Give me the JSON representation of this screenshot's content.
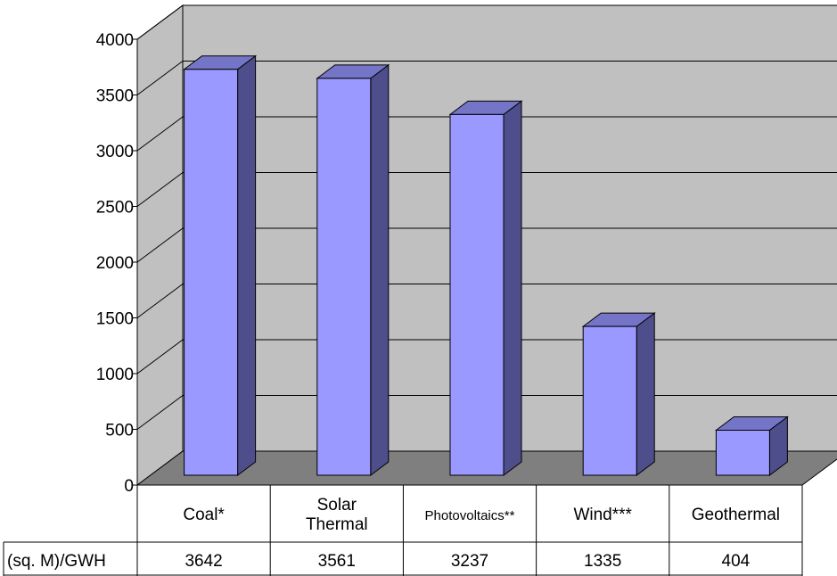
{
  "chart_data": {
    "type": "bar",
    "categories": [
      "Coal*",
      "Solar Thermal",
      "Photovoltaics**",
      "Wind***",
      "Geothermal"
    ],
    "category_lines": [
      [
        "Coal*"
      ],
      [
        "Solar",
        "Thermal"
      ],
      [
        "Photovoltaics**"
      ],
      [
        "Wind***"
      ],
      [
        "Geothermal"
      ]
    ],
    "series": [
      {
        "name": "(sq. M)/GWH",
        "values": [
          3642,
          3561,
          3237,
          1335,
          404
        ]
      }
    ],
    "ylim": [
      0,
      4000
    ],
    "yticks": [
      0,
      500,
      1000,
      1500,
      2000,
      2500,
      3000,
      3500,
      4000
    ],
    "title": "",
    "xlabel": "",
    "ylabel": "",
    "grid": true,
    "legend": "none",
    "data_table": true,
    "three_d": true,
    "colors": {
      "bar_front": "#9999ff",
      "bar_side": "#4e4e8c",
      "bar_top": "#7575c8",
      "back_wall": "#c0c0c0",
      "side_wall": "#c0c0c0",
      "floor": "#7f7f7f",
      "gridline": "#000000"
    }
  }
}
